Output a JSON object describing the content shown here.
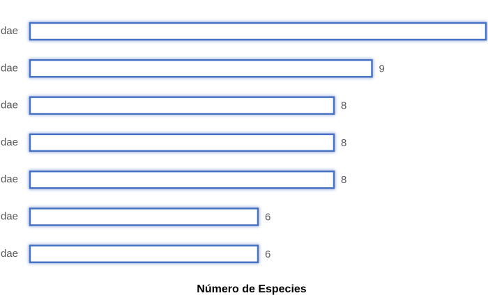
{
  "chart_data": {
    "type": "barh",
    "x_label": "Número de Especies",
    "categories": [
      "dae",
      "dae",
      "dae",
      "dae",
      "dae",
      "dae",
      "dae"
    ],
    "values": [
      12,
      9,
      8,
      8,
      8,
      6,
      6
    ],
    "color": "#4472c4",
    "xlim": [
      0,
      12
    ]
  }
}
